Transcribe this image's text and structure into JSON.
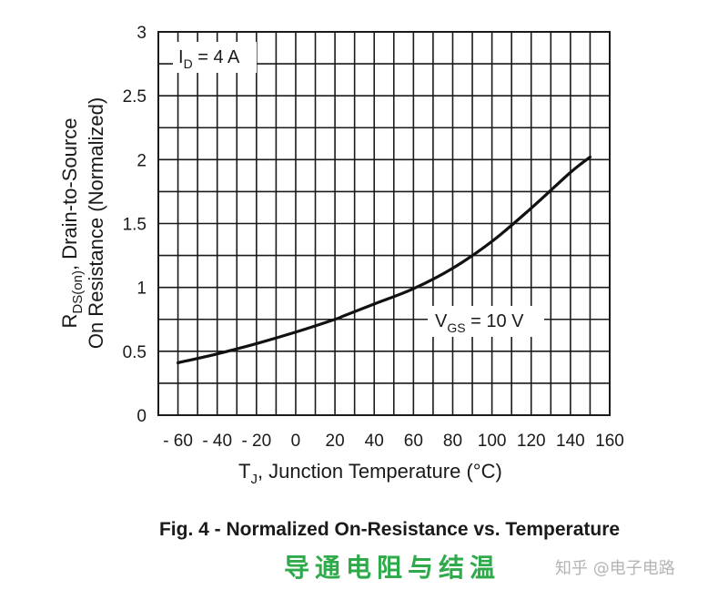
{
  "chart_data": {
    "type": "line",
    "title": "Fig. 4 - Normalized On-Resistance vs. Temperature",
    "xlabel": {
      "main": "T",
      "sub": "J",
      "rest": ", Junction Temperature (°C)"
    },
    "ylabel": {
      "line1": {
        "main": "R",
        "sub": "DS(on)",
        "rest": ", Drain-to-Source"
      },
      "line2": "On Resistance (Normalized)"
    },
    "xlim": [
      -70,
      160
    ],
    "ylim": [
      0,
      3
    ],
    "x_ticks": [
      -60,
      -40,
      -20,
      0,
      20,
      40,
      60,
      80,
      100,
      120,
      140,
      160
    ],
    "x_tick_labels": [
      "- 60",
      "- 40",
      "- 20",
      "0",
      "20",
      "40",
      "60",
      "80",
      "100",
      "120",
      "140",
      "160"
    ],
    "y_ticks": [
      0,
      0.5,
      1,
      1.5,
      2,
      2.5,
      3
    ],
    "y_tick_labels": [
      "0",
      "0.5",
      "1",
      "1.5",
      "2",
      "2.5",
      "3"
    ],
    "grid": true,
    "grid_x_step": 10,
    "grid_y_step": 0.25,
    "series": [
      {
        "name": "",
        "x": [
          -60,
          -40,
          -20,
          0,
          20,
          25,
          40,
          60,
          80,
          100,
          120,
          140,
          150
        ],
        "y": [
          0.41,
          0.48,
          0.56,
          0.65,
          0.75,
          0.78,
          0.87,
          0.99,
          1.15,
          1.36,
          1.62,
          1.9,
          2.02
        ]
      }
    ],
    "annotations": [
      {
        "main": "I",
        "sub": "D",
        "rest": " = 4 A"
      },
      {
        "main": "V",
        "sub": "GS",
        "rest": " = 10 V"
      }
    ]
  },
  "watermark": {
    "left_text": "导通电阻与结温",
    "right_text": "知乎 @电子电路",
    "left_color": "#2eaa4a",
    "right_color": "#b5b5b5"
  }
}
